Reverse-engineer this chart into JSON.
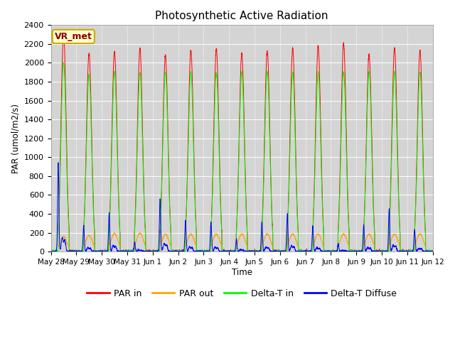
{
  "title": "Photosynthetic Active Radiation",
  "ylabel": "PAR (umol/m2/s)",
  "xlabel": "Time",
  "ylim": [
    0,
    2400
  ],
  "yticks": [
    0,
    200,
    400,
    600,
    800,
    1000,
    1200,
    1400,
    1600,
    1800,
    2000,
    2200,
    2400
  ],
  "bg_color": "#d8d8d8",
  "label_box_text": "VR_met",
  "legend_labels": [
    "PAR in",
    "PAR out",
    "Delta-T in",
    "Delta-T Diffuse"
  ],
  "legend_colors": [
    "red",
    "orange",
    "lime",
    "blue"
  ],
  "x_tick_labels": [
    "May 28",
    "May 29",
    "May 30",
    "May 31",
    "Jun 1",
    "Jun 2",
    "Jun 3",
    "Jun 4",
    "Jun 5",
    "Jun 6",
    "Jun 7",
    "Jun 8",
    "Jun 9",
    "Jun 10",
    "Jun 11",
    "Jun 12"
  ],
  "days": 15,
  "pts_per_day": 288,
  "par_in_peaks": [
    2320,
    2100,
    2120,
    2150,
    2080,
    2130,
    2150,
    2100,
    2130,
    2150,
    2180,
    2200,
    2090,
    2160,
    2130
  ],
  "par_out_peaks": [
    160,
    170,
    190,
    195,
    185,
    185,
    185,
    185,
    185,
    185,
    185,
    185,
    185,
    185,
    185
  ],
  "delta_t_in_peaks": [
    2000,
    1870,
    1900,
    1890,
    1900,
    1900,
    1900,
    1900,
    1900,
    1900,
    1900,
    1900,
    1900,
    1900,
    1900
  ],
  "delta_t_diff_peaks": [
    950,
    275,
    410,
    100,
    560,
    330,
    310,
    130,
    310,
    400,
    270,
    80,
    280,
    450,
    230
  ]
}
